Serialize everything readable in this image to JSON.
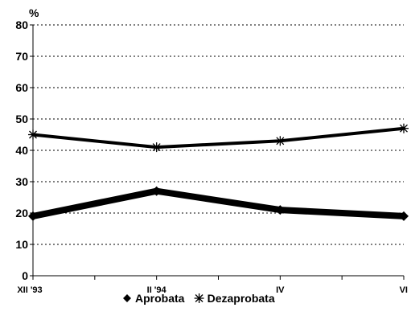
{
  "chart_data": {
    "type": "line",
    "unit_label": "%",
    "categories": [
      "XII '93",
      "II '94",
      "IV",
      "VI"
    ],
    "ylim": [
      0,
      80
    ],
    "yticks": [
      0,
      10,
      20,
      30,
      40,
      50,
      60,
      70,
      80
    ],
    "grid": true,
    "legend_position": "bottom-center",
    "series": [
      {
        "name": "Aprobata",
        "values": [
          19,
          27,
          21,
          19
        ],
        "marker": "diamond",
        "color": "#000000"
      },
      {
        "name": "Dezaprobata",
        "values": [
          45,
          41,
          43,
          47
        ],
        "marker": "asterisk",
        "color": "#000000"
      }
    ]
  }
}
